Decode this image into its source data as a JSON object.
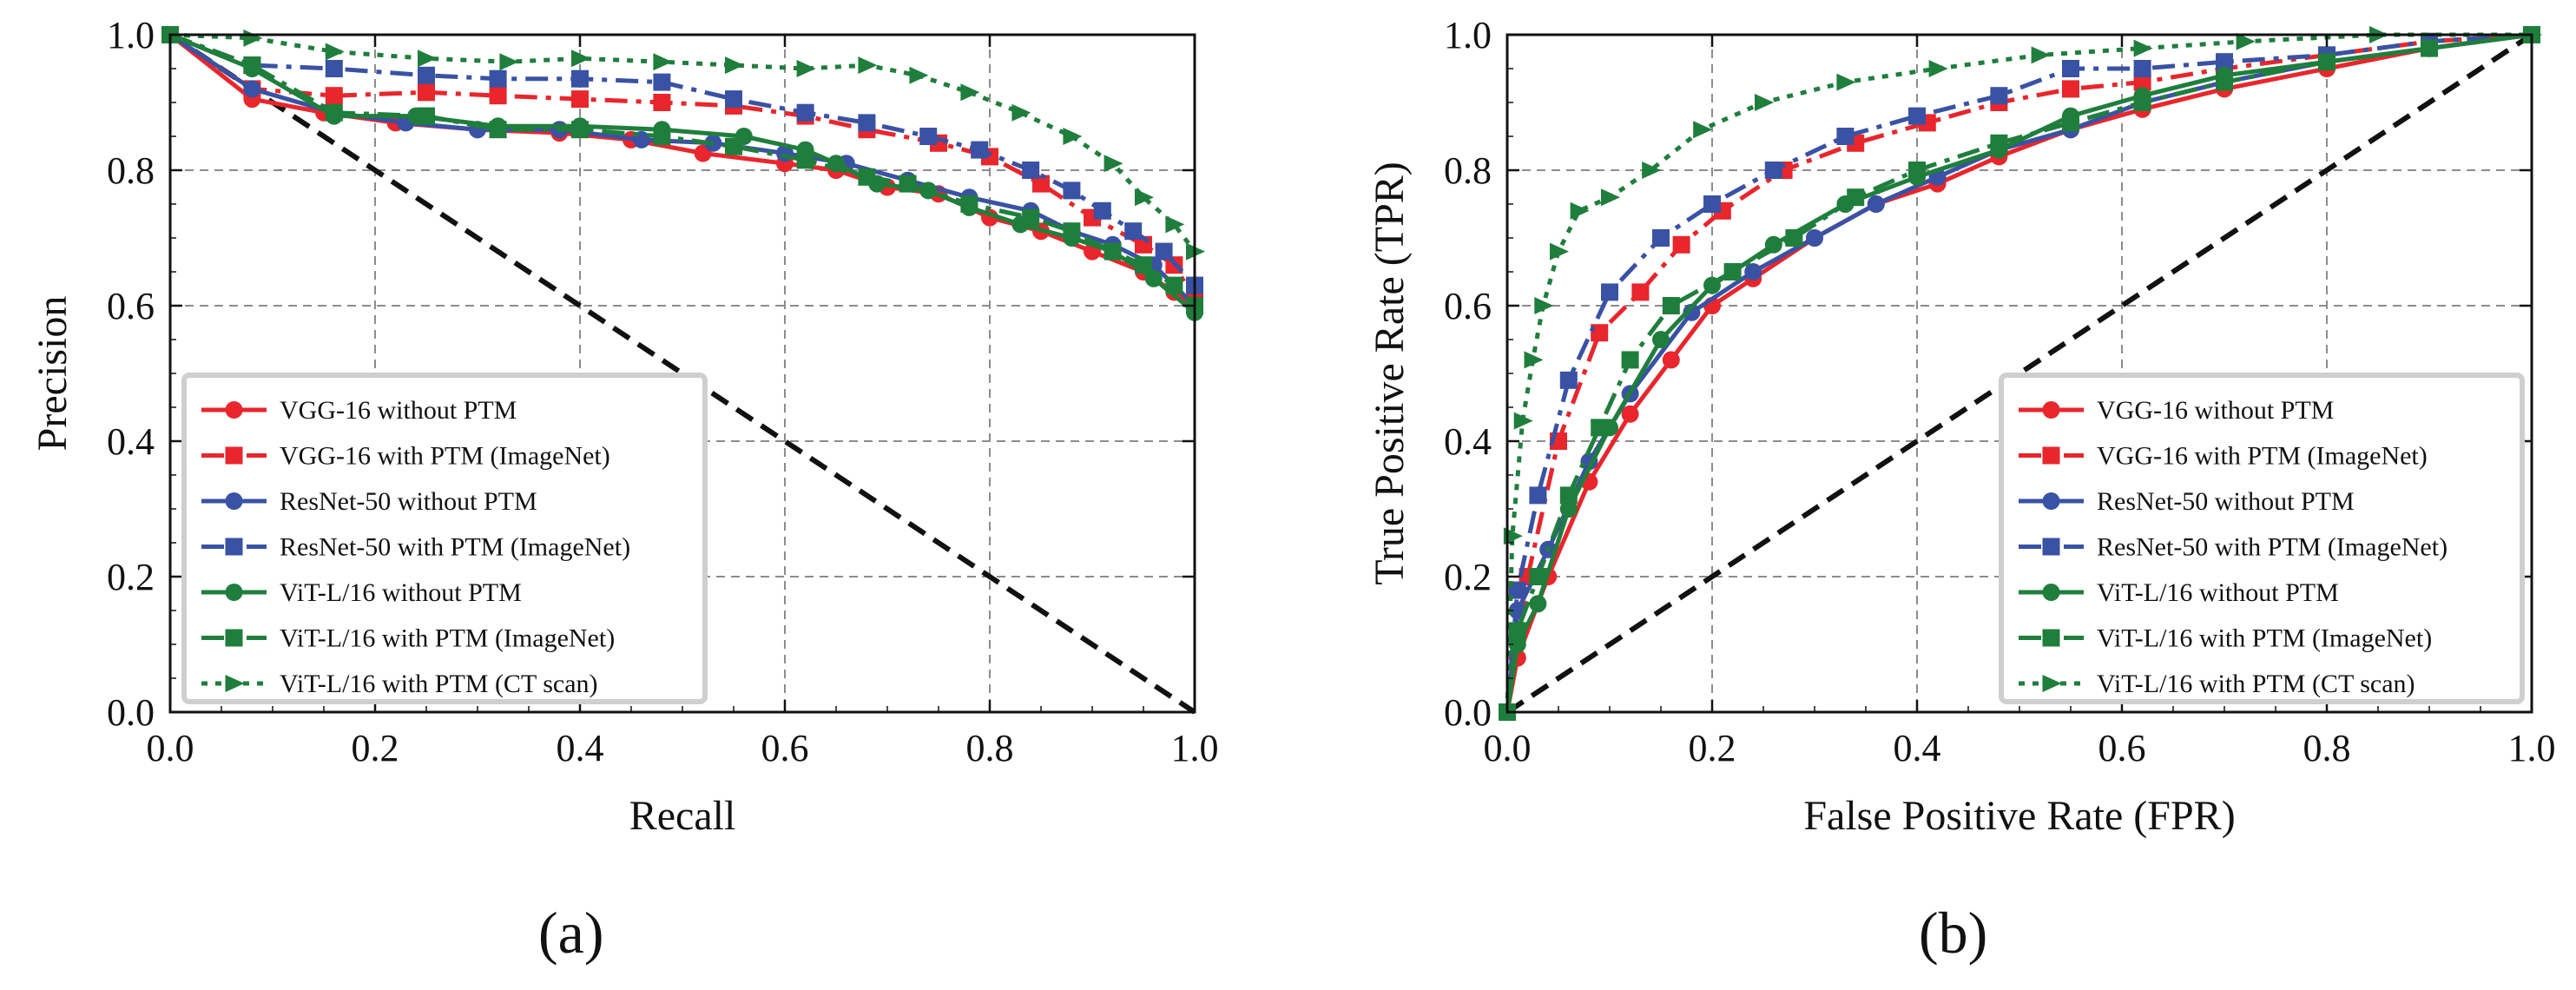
{
  "colors": {
    "red": "#e8262c",
    "blue": "#3952a4",
    "green": "#1f7e3c",
    "diagonal": "#111111",
    "grid": "#8c8c8c"
  },
  "chart_data": [
    {
      "type": "line",
      "panel_label": "(a)",
      "title": "",
      "xlabel": "Recall",
      "ylabel": "Precision",
      "xlim": [
        0.0,
        1.0
      ],
      "ylim": [
        0.0,
        1.0
      ],
      "xticks": [
        "0.0",
        "0.2",
        "0.4",
        "0.6",
        "0.8",
        "1.0"
      ],
      "yticks": [
        "0.0",
        "0.2",
        "0.4",
        "0.6",
        "0.8",
        "1.0"
      ],
      "grid": true,
      "legend_position": "lower-left",
      "diagonal": {
        "x": [
          0,
          1
        ],
        "y": [
          1,
          0
        ]
      },
      "series": [
        {
          "name": "VGG-16 without PTM",
          "color": "red",
          "marker": "circle",
          "dash": "solid",
          "x": [
            0.0,
            0.08,
            0.15,
            0.22,
            0.3,
            0.38,
            0.45,
            0.52,
            0.6,
            0.65,
            0.7,
            0.75,
            0.8,
            0.85,
            0.9,
            0.95,
            0.98,
            1.0
          ],
          "y": [
            1.0,
            0.905,
            0.885,
            0.87,
            0.86,
            0.855,
            0.845,
            0.825,
            0.81,
            0.8,
            0.775,
            0.765,
            0.73,
            0.71,
            0.68,
            0.65,
            0.62,
            0.6
          ]
        },
        {
          "name": "VGG-16 with PTM (ImageNet)",
          "color": "red",
          "marker": "square",
          "dash": "dashdot",
          "x": [
            0.0,
            0.08,
            0.16,
            0.25,
            0.32,
            0.4,
            0.48,
            0.55,
            0.62,
            0.68,
            0.75,
            0.8,
            0.85,
            0.9,
            0.95,
            0.98,
            1.0
          ],
          "y": [
            1.0,
            0.92,
            0.91,
            0.915,
            0.91,
            0.905,
            0.9,
            0.895,
            0.88,
            0.86,
            0.84,
            0.82,
            0.78,
            0.73,
            0.69,
            0.66,
            0.61
          ]
        },
        {
          "name": "ResNet-50 without PTM",
          "color": "blue",
          "marker": "circle",
          "dash": "solid",
          "x": [
            0.0,
            0.08,
            0.16,
            0.23,
            0.3,
            0.38,
            0.46,
            0.53,
            0.6,
            0.66,
            0.72,
            0.78,
            0.84,
            0.88,
            0.92,
            0.96,
            1.0
          ],
          "y": [
            1.0,
            0.92,
            0.885,
            0.87,
            0.86,
            0.86,
            0.845,
            0.84,
            0.825,
            0.81,
            0.785,
            0.76,
            0.74,
            0.71,
            0.69,
            0.66,
            0.6
          ]
        },
        {
          "name": "ResNet-50 with PTM (ImageNet)",
          "color": "blue",
          "marker": "square",
          "dash": "dashdot",
          "x": [
            0.0,
            0.08,
            0.16,
            0.25,
            0.32,
            0.4,
            0.48,
            0.55,
            0.62,
            0.68,
            0.74,
            0.79,
            0.84,
            0.88,
            0.91,
            0.94,
            0.97,
            1.0
          ],
          "y": [
            1.0,
            0.955,
            0.95,
            0.94,
            0.935,
            0.935,
            0.93,
            0.905,
            0.885,
            0.87,
            0.85,
            0.83,
            0.8,
            0.77,
            0.74,
            0.71,
            0.68,
            0.63
          ]
        },
        {
          "name": "ViT-L/16 without PTM",
          "color": "green",
          "marker": "circle",
          "dash": "solid",
          "x": [
            0.0,
            0.08,
            0.16,
            0.24,
            0.32,
            0.4,
            0.48,
            0.56,
            0.62,
            0.65,
            0.69,
            0.74,
            0.78,
            0.83,
            0.88,
            0.92,
            0.96,
            1.0
          ],
          "y": [
            1.0,
            0.95,
            0.88,
            0.88,
            0.865,
            0.865,
            0.86,
            0.85,
            0.83,
            0.81,
            0.78,
            0.77,
            0.745,
            0.72,
            0.7,
            0.68,
            0.64,
            0.59
          ]
        },
        {
          "name": "ViT-L/16 with PTM (ImageNet)",
          "color": "green",
          "marker": "square",
          "dash": "dashdot",
          "x": [
            0.0,
            0.08,
            0.16,
            0.25,
            0.32,
            0.4,
            0.48,
            0.55,
            0.62,
            0.68,
            0.72,
            0.78,
            0.84,
            0.88,
            0.92,
            0.95,
            0.98,
            1.0
          ],
          "y": [
            1.0,
            0.955,
            0.885,
            0.88,
            0.86,
            0.86,
            0.85,
            0.835,
            0.815,
            0.79,
            0.78,
            0.75,
            0.73,
            0.71,
            0.68,
            0.66,
            0.63,
            0.6
          ]
        },
        {
          "name": "ViT-L/16 with PTM (CT scan)",
          "color": "green",
          "marker": "triangle-right",
          "dash": "dotted",
          "x": [
            0.0,
            0.08,
            0.16,
            0.25,
            0.33,
            0.4,
            0.48,
            0.55,
            0.62,
            0.68,
            0.73,
            0.78,
            0.83,
            0.88,
            0.92,
            0.95,
            0.98,
            1.0
          ],
          "y": [
            1.0,
            0.995,
            0.975,
            0.965,
            0.96,
            0.965,
            0.96,
            0.955,
            0.95,
            0.955,
            0.94,
            0.915,
            0.885,
            0.85,
            0.81,
            0.76,
            0.72,
            0.68
          ]
        }
      ]
    },
    {
      "type": "line",
      "panel_label": "(b)",
      "title": "",
      "xlabel": "False Positive Rate (FPR)",
      "ylabel": "True Positive Rate (TPR)",
      "xlim": [
        0.0,
        1.0
      ],
      "ylim": [
        0.0,
        1.0
      ],
      "xticks": [
        "0.0",
        "0.2",
        "0.4",
        "0.6",
        "0.8",
        "1.0"
      ],
      "yticks": [
        "0.0",
        "0.2",
        "0.4",
        "0.6",
        "0.8",
        "1.0"
      ],
      "grid": true,
      "legend_position": "lower-right",
      "diagonal": {
        "x": [
          0,
          1
        ],
        "y": [
          0,
          1
        ]
      },
      "series": [
        {
          "name": "VGG-16 without PTM",
          "color": "red",
          "marker": "circle",
          "dash": "solid",
          "x": [
            0.0,
            0.01,
            0.04,
            0.08,
            0.12,
            0.16,
            0.2,
            0.24,
            0.3,
            0.36,
            0.42,
            0.48,
            0.55,
            0.62,
            0.7,
            0.8,
            0.9,
            1.0
          ],
          "y": [
            0.0,
            0.08,
            0.2,
            0.34,
            0.44,
            0.52,
            0.6,
            0.64,
            0.7,
            0.75,
            0.78,
            0.82,
            0.86,
            0.89,
            0.92,
            0.95,
            0.98,
            1.0
          ]
        },
        {
          "name": "VGG-16 with PTM (ImageNet)",
          "color": "red",
          "marker": "square",
          "dash": "dashdot",
          "x": [
            0.0,
            0.02,
            0.05,
            0.09,
            0.13,
            0.17,
            0.21,
            0.27,
            0.34,
            0.41,
            0.48,
            0.55,
            0.62,
            0.7,
            0.8,
            0.9,
            1.0
          ],
          "y": [
            0.0,
            0.2,
            0.4,
            0.56,
            0.62,
            0.69,
            0.74,
            0.8,
            0.84,
            0.87,
            0.9,
            0.92,
            0.93,
            0.95,
            0.97,
            0.99,
            1.0
          ]
        },
        {
          "name": "ResNet-50 without PTM",
          "color": "blue",
          "marker": "circle",
          "dash": "solid",
          "x": [
            0.0,
            0.01,
            0.04,
            0.08,
            0.12,
            0.18,
            0.24,
            0.3,
            0.36,
            0.42,
            0.48,
            0.55,
            0.62,
            0.7,
            0.8,
            0.9,
            1.0
          ],
          "y": [
            0.0,
            0.15,
            0.24,
            0.37,
            0.47,
            0.59,
            0.65,
            0.7,
            0.75,
            0.79,
            0.83,
            0.86,
            0.9,
            0.93,
            0.96,
            0.98,
            1.0
          ]
        },
        {
          "name": "ResNet-50 with PTM (ImageNet)",
          "color": "blue",
          "marker": "square",
          "dash": "dashdot",
          "x": [
            0.0,
            0.01,
            0.03,
            0.06,
            0.1,
            0.15,
            0.2,
            0.26,
            0.33,
            0.4,
            0.48,
            0.55,
            0.62,
            0.7,
            0.8,
            0.9,
            1.0
          ],
          "y": [
            0.0,
            0.18,
            0.32,
            0.49,
            0.62,
            0.7,
            0.75,
            0.8,
            0.85,
            0.88,
            0.91,
            0.95,
            0.95,
            0.96,
            0.97,
            0.99,
            1.0
          ]
        },
        {
          "name": "ViT-L/16 without PTM",
          "color": "green",
          "marker": "circle",
          "dash": "solid",
          "x": [
            0.0,
            0.01,
            0.03,
            0.06,
            0.1,
            0.15,
            0.2,
            0.26,
            0.33,
            0.4,
            0.48,
            0.55,
            0.62,
            0.7,
            0.8,
            0.9,
            1.0
          ],
          "y": [
            0.0,
            0.1,
            0.16,
            0.3,
            0.42,
            0.55,
            0.63,
            0.69,
            0.75,
            0.79,
            0.83,
            0.88,
            0.91,
            0.94,
            0.96,
            0.98,
            1.0
          ]
        },
        {
          "name": "ViT-L/16 with PTM (ImageNet)",
          "color": "green",
          "marker": "square",
          "dash": "dashdot",
          "x": [
            0.0,
            0.01,
            0.03,
            0.06,
            0.09,
            0.12,
            0.16,
            0.22,
            0.28,
            0.34,
            0.4,
            0.48,
            0.55,
            0.62,
            0.7,
            0.8,
            0.9,
            1.0
          ],
          "y": [
            0.0,
            0.12,
            0.2,
            0.32,
            0.42,
            0.52,
            0.6,
            0.65,
            0.7,
            0.76,
            0.8,
            0.84,
            0.87,
            0.9,
            0.93,
            0.96,
            0.98,
            1.0
          ]
        },
        {
          "name": "ViT-L/16 with PTM (CT scan)",
          "color": "green",
          "marker": "triangle-right",
          "dash": "dotted",
          "x": [
            0.0,
            0.005,
            0.015,
            0.025,
            0.035,
            0.05,
            0.07,
            0.1,
            0.14,
            0.19,
            0.25,
            0.33,
            0.42,
            0.52,
            0.62,
            0.72,
            0.85,
            1.0
          ],
          "y": [
            0.0,
            0.26,
            0.43,
            0.52,
            0.6,
            0.68,
            0.74,
            0.76,
            0.8,
            0.86,
            0.9,
            0.93,
            0.95,
            0.97,
            0.98,
            0.99,
            1.0,
            1.0
          ]
        }
      ]
    }
  ]
}
